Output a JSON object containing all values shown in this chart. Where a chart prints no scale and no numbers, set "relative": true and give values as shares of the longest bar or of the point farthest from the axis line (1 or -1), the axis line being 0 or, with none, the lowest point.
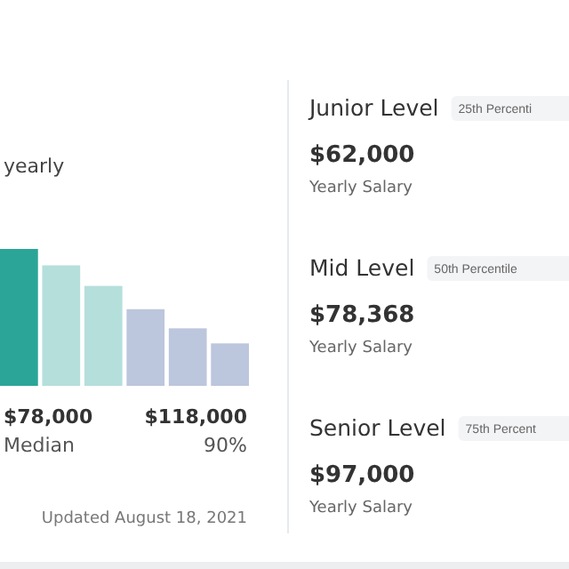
{
  "chart_data": [
    {
      "type": "bar",
      "subtitle": "yearly",
      "categories": [
        null,
        null,
        null,
        null,
        null,
        null
      ],
      "values": [
        1,
        0.88,
        0.73,
        0.56,
        0.42,
        0.31
      ],
      "colors": [
        "#2aa597",
        "#b5dfdb",
        "#b5dfdb",
        "#bcc6dc",
        "#bcc6dc",
        "#bcc6dc"
      ],
      "relative": true,
      "annotations": [
        "$78,000",
        "Median",
        "$118,000",
        "90%",
        "Updated August 18, 2021"
      ]
    },
    {
      "type": "other",
      "annotations": [
        "Junior Level",
        "25th Percenti",
        "$62,000",
        "Yearly Salary",
        "Mid Level",
        "50th Percentile",
        "$78,368",
        "Yearly Salary",
        "Senior Level",
        "75th Percent",
        "$97,000",
        "Yearly Salary"
      ]
    }
  ]
}
